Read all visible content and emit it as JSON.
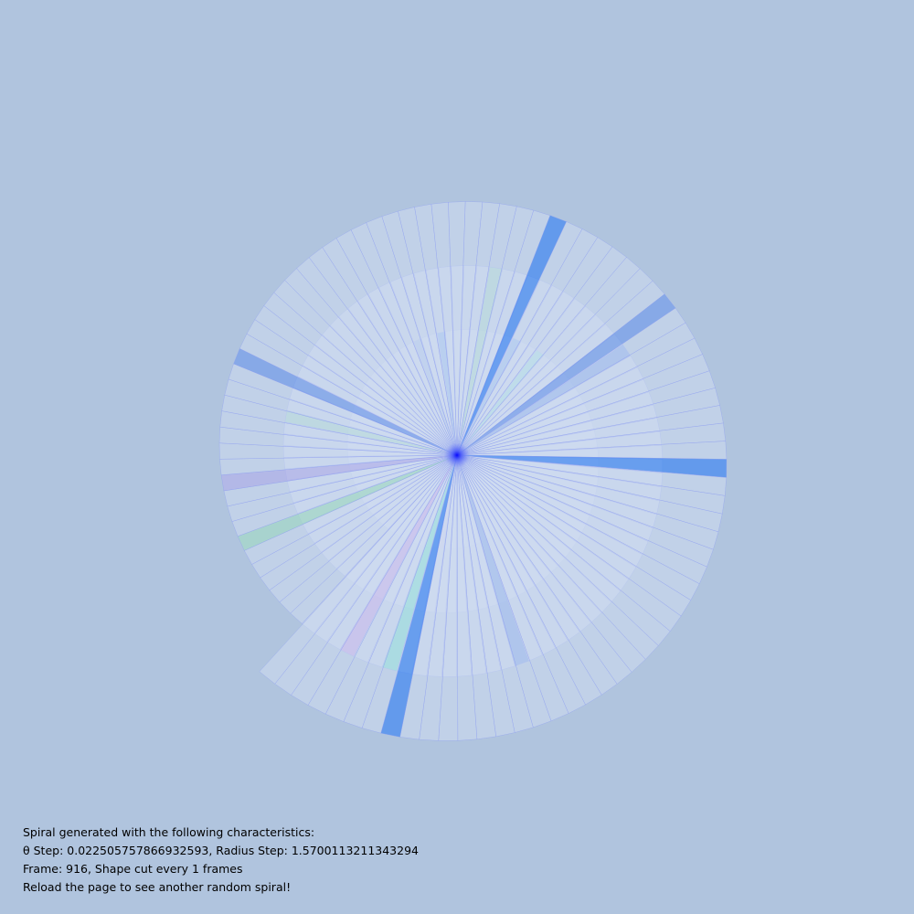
{
  "colors": {
    "background": "#b0c4de",
    "wedge_fill_base": "#cfdcf0",
    "wedge_stroke": "#8f9ff0",
    "center_glow": "#0000ff",
    "accents": [
      "#7aa0ea",
      "#c6a0ea",
      "#6fe0cc",
      "#9ec8e6",
      "#b4b4ea",
      "#a6d8c8",
      "#d69cf0",
      "#4a8cf0"
    ]
  },
  "spiral": {
    "theta_step": 0.022505757866932593,
    "radius_step": 1.5700113211343294,
    "frame": 916,
    "cut_every": 1
  },
  "info": {
    "line1": "Spiral generated with the following characteristics:",
    "line2": "θ Step: 0.022505757866932593, Radius Step: 1.5700113211343294",
    "line3": "Frame: 916, Shape cut every 1 frames",
    "line4": "Reload the page to see another random spiral!"
  }
}
